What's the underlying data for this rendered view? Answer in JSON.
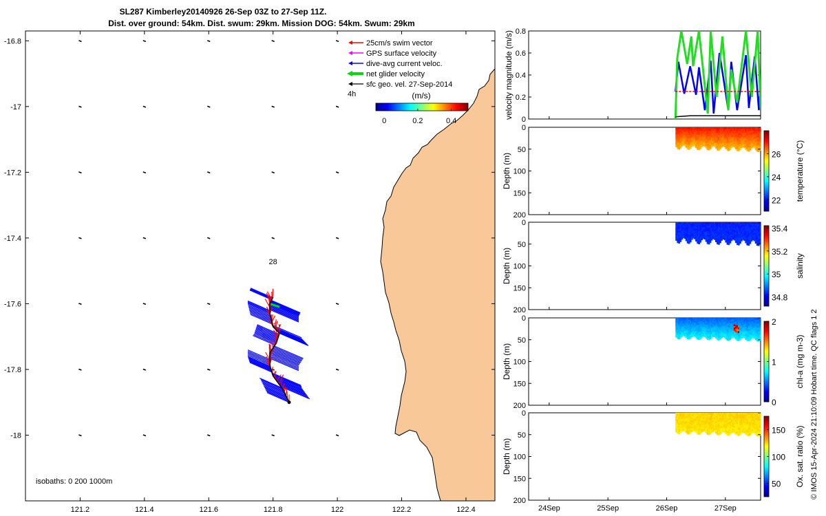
{
  "title_line1": "SL287 Kimberley20140926 26-Sep 03Z to 27-Sep 11Z.",
  "title_line2": "Dist. over ground: 54km. Dist. swum: 29km. Mission DOG: 54km. Swum: 29km",
  "credit": "© IMOS 15-Apr-2024 21:10:09 Hobart time. QC flags 1  2",
  "colors": {
    "land": "#F8C898",
    "swim": "#ff0000",
    "gps": "#ff00ff",
    "depth_avg": "#0000ff",
    "net": "#00dd00",
    "sfc_geo": "#000000",
    "speed_line": "#0000ff",
    "net_line": "#22dd22"
  },
  "chart_data": [
    {
      "type": "map",
      "xlim": [
        121.03,
        122.49
      ],
      "ylim": [
        -18.2,
        -16.77
      ],
      "xticks": [
        121.2,
        121.4,
        121.6,
        121.8,
        122,
        122.2,
        122.4
      ],
      "xtick_labels": [
        "121.2",
        "121.4",
        "121.6",
        "121.8",
        "122",
        "122.2",
        "122.4"
      ],
      "yticks": [
        -16.8,
        -17,
        -17.2,
        -17.4,
        -17.6,
        -17.8,
        -18
      ],
      "ytick_labels": [
        "-16.8",
        "-17",
        "-17.2",
        "-17.4",
        "-17.6",
        "-17.8",
        "-18"
      ],
      "legend": [
        {
          "label": "25cm/s swim vector",
          "color": "#ff0000",
          "marker": "arrow"
        },
        {
          "label": "GPS surface velocity",
          "color": "#ff00ff",
          "marker": "arrow"
        },
        {
          "label": "dive-avg current veloc.",
          "color": "#0000ff",
          "marker": "arrow"
        },
        {
          "label": "net glider velocity",
          "color": "#00dd00",
          "marker": "thick"
        },
        {
          "label": "sfc geo. vel. 27-Sep-2014",
          "color": "#000000",
          "marker": "arrow"
        }
      ],
      "legend_extra": "4h",
      "colorbar": {
        "label": "(m/s)",
        "ticks": [
          0,
          0.2,
          0.4
        ],
        "tick_labels": [
          "0",
          "0.2",
          "0.4"
        ],
        "range": [
          -0.05,
          0.5
        ]
      },
      "annotation": "28",
      "annotation_pos": {
        "lon": 121.8,
        "lat": -17.48
      },
      "isobaths_label": "isobaths: 0   200  1000m",
      "track": [
        {
          "lon": 121.85,
          "lat": -17.9
        },
        {
          "lon": 121.83,
          "lat": -17.86
        },
        {
          "lon": 121.8,
          "lat": -17.82
        },
        {
          "lon": 121.79,
          "lat": -17.79
        },
        {
          "lon": 121.79,
          "lat": -17.75
        },
        {
          "lon": 121.81,
          "lat": -17.72
        },
        {
          "lon": 121.82,
          "lat": -17.69
        },
        {
          "lon": 121.8,
          "lat": -17.67
        },
        {
          "lon": 121.79,
          "lat": -17.63
        },
        {
          "lon": 121.79,
          "lat": -17.6
        },
        {
          "lon": 121.8,
          "lat": -17.58
        }
      ]
    },
    {
      "type": "line",
      "ylabel": "velocity magnitude (m/s)",
      "ylim": [
        0,
        0.8
      ],
      "yticks": [
        0,
        0.2,
        0.4,
        0.6,
        0.8
      ],
      "ytick_labels": [
        "0",
        "0.2",
        "0.4",
        "0.6",
        "0.8"
      ],
      "xlim": [
        23.65,
        27.6
      ],
      "series": [
        {
          "name": "dive-avg current speed",
          "color": "#0000ff",
          "x": [
            26.15,
            26.2,
            26.3,
            26.4,
            26.5,
            26.55,
            26.65,
            26.75,
            26.8,
            26.9,
            27.05,
            27.1,
            27.2,
            27.35,
            27.4,
            27.5,
            27.57,
            27.6
          ],
          "y": [
            0.25,
            0.52,
            0.23,
            0.48,
            0.22,
            0.47,
            0.08,
            0.53,
            0.05,
            0.6,
            0.08,
            0.52,
            0.08,
            0.58,
            0.1,
            0.57,
            0.08,
            0.33
          ]
        },
        {
          "name": "net glider speed",
          "color": "#22dd22",
          "x": [
            26.15,
            26.18,
            26.25,
            26.35,
            26.42,
            26.45,
            26.55,
            26.62,
            26.7,
            26.75,
            26.85,
            26.95,
            27.05,
            27.1,
            27.2,
            27.35,
            27.45,
            27.55,
            27.6
          ],
          "y": [
            0.0,
            0.55,
            0.8,
            0.5,
            0.75,
            0.48,
            0.8,
            0.45,
            0.05,
            0.8,
            0.2,
            0.75,
            0.08,
            0.45,
            0.15,
            0.8,
            0.2,
            0.8,
            0.1
          ]
        },
        {
          "name": "swim speed",
          "color": "#ff0000",
          "x": [
            26.15,
            27.6
          ],
          "y": [
            0.25,
            0.25
          ]
        },
        {
          "name": "sfc geo speed",
          "color": "#000000",
          "x": [
            26.15,
            26.4,
            27.6
          ],
          "y": [
            0.02,
            0.03,
            0.03
          ]
        }
      ]
    },
    {
      "type": "heatmap",
      "variable": "temperature",
      "ylabel": "Depth (m)",
      "ylim": [
        200,
        0
      ],
      "yticks": [
        0,
        50,
        100,
        150,
        200
      ],
      "colorbar_label": "temperature (°C)",
      "colorbar_ticks": [
        22,
        24,
        26
      ],
      "colorbar_range": [
        21,
        28
      ],
      "x_range": [
        26.15,
        27.6
      ],
      "depth_top": 0,
      "depth_bottom_min": 40,
      "depth_bottom_max": 50,
      "value_surface": 27.0,
      "value_deep": 25.8
    },
    {
      "type": "heatmap",
      "variable": "salinity",
      "ylabel": "Depth (m)",
      "ylim": [
        200,
        0
      ],
      "yticks": [
        0,
        50,
        100,
        150,
        200
      ],
      "colorbar_label": "salinity",
      "colorbar_ticks": [
        34.8,
        35,
        35.2,
        35.4
      ],
      "colorbar_range": [
        34.72,
        35.42
      ],
      "x_range": [
        26.15,
        27.6
      ],
      "depth_top": 0,
      "depth_bottom_min": 35,
      "depth_bottom_max": 48,
      "value_surface": 34.83,
      "value_deep": 34.84
    },
    {
      "type": "heatmap",
      "variable": "chl-a",
      "ylabel": "Depth (m)",
      "ylim": [
        200,
        0
      ],
      "yticks": [
        0,
        50,
        100,
        150,
        200
      ],
      "colorbar_label": "chl-a (mg m-3)",
      "colorbar_ticks": [
        0,
        1,
        2
      ],
      "colorbar_range": [
        0,
        2
      ],
      "x_range": [
        26.15,
        27.6
      ],
      "depth_top": 0,
      "depth_bottom_min": 40,
      "depth_bottom_max": 48,
      "value_surface": 0.45,
      "value_deep": 0.75
    },
    {
      "type": "heatmap",
      "variable": "oxygen saturation",
      "ylabel": "Depth (m)",
      "ylim": [
        200,
        0
      ],
      "yticks": [
        0,
        50,
        100,
        150,
        200
      ],
      "colorbar_label": "Ox. sat. ratio (%)",
      "colorbar_ticks": [
        50,
        100,
        150
      ],
      "colorbar_range": [
        25,
        175
      ],
      "x_range": [
        26.15,
        27.6
      ],
      "depth_top": 0,
      "depth_bottom_min": 40,
      "depth_bottom_max": 48,
      "value_surface": 125,
      "value_deep": 122
    }
  ],
  "time_axis": {
    "ticks": [
      24,
      25,
      26,
      27
    ],
    "tick_labels": [
      "24Sep",
      "25Sep",
      "26Sep",
      "27Sep"
    ]
  }
}
